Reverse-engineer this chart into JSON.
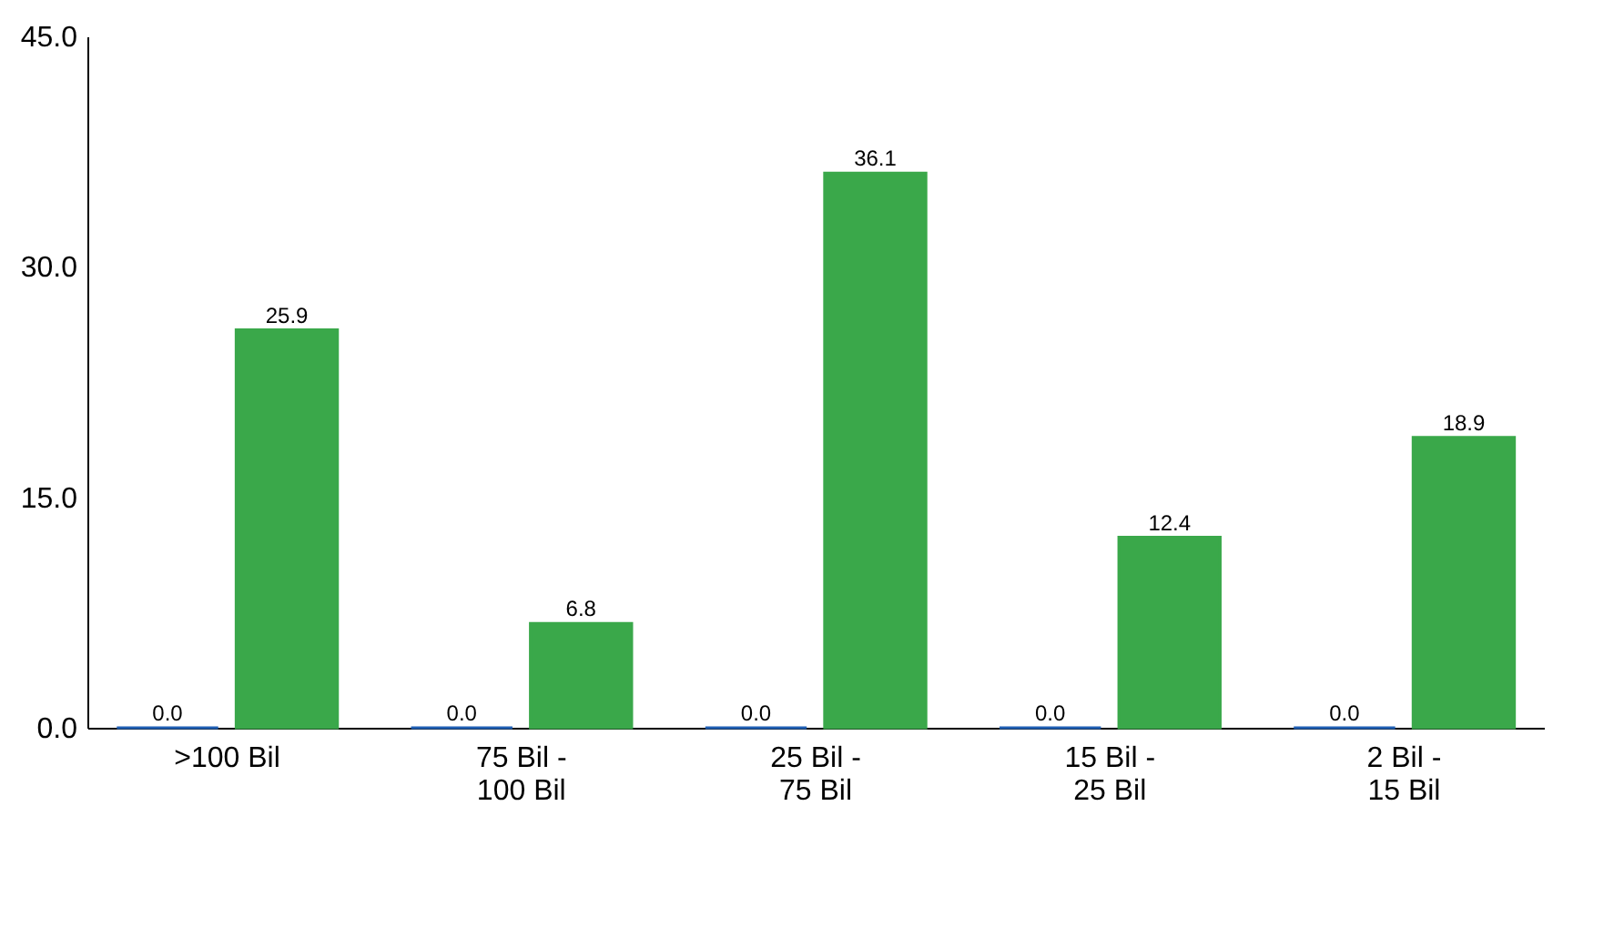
{
  "chart_data": {
    "type": "bar",
    "categories": [
      ">100 Bil",
      "75 Bil -\n100 Bil",
      "25 Bil -\n75 Bil",
      "15 Bil -\n25 Bil",
      "2 Bil -\n15 Bil"
    ],
    "series": [
      {
        "color": "#1f5fb4",
        "values": [
          0.0,
          0.0,
          0.0,
          0.0,
          0.0
        ],
        "value_labels": [
          "0.0",
          "0.0",
          "0.0",
          "0.0",
          "0.0"
        ]
      },
      {
        "color": "#3aa84a",
        "values": [
          25.9,
          6.8,
          36.1,
          12.4,
          18.9
        ],
        "value_labels": [
          "25.9",
          "6.8",
          "36.1",
          "12.4",
          "18.9"
        ]
      }
    ],
    "ylim": [
      0,
      45
    ],
    "yticks": [
      {
        "value": 0,
        "label": "0.0"
      },
      {
        "value": 15,
        "label": "15.0"
      },
      {
        "value": 30,
        "label": "30.0"
      },
      {
        "value": 45,
        "label": "45.0"
      }
    ],
    "grid": false
  }
}
